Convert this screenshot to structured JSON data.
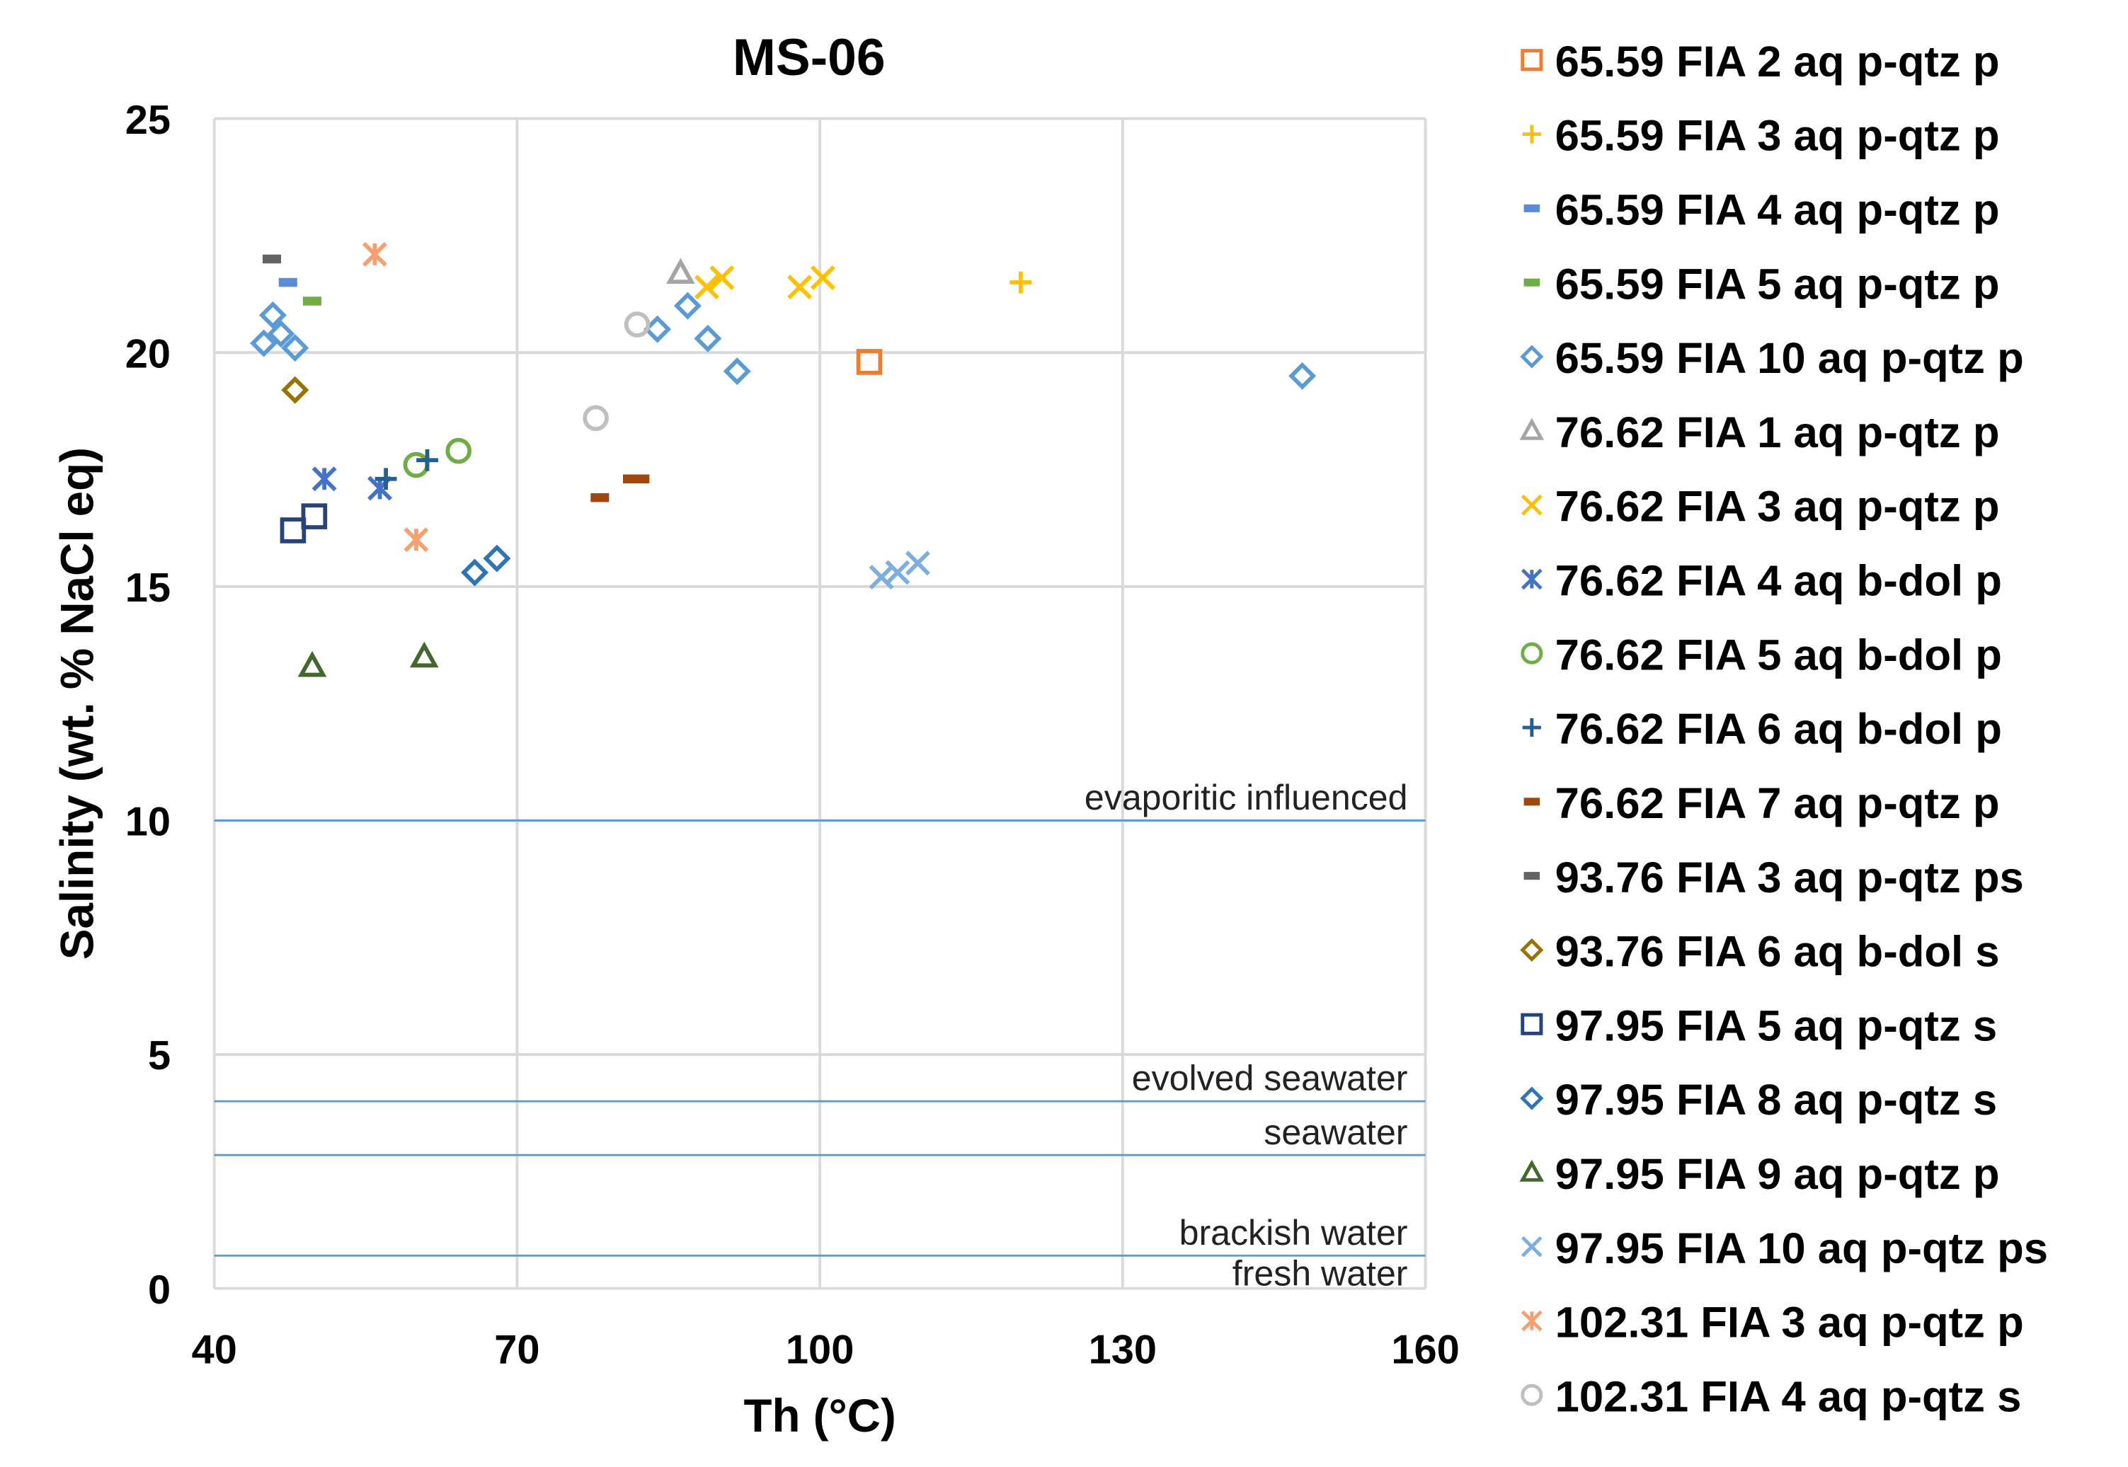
{
  "chart_data": {
    "type": "scatter",
    "title": "MS-06",
    "xlabel": "Th (°C)",
    "ylabel": "Salinity (wt. % NaCl eq)",
    "xlim": [
      40,
      160
    ],
    "ylim": [
      0,
      25
    ],
    "xticks": [
      40,
      70,
      100,
      130,
      160
    ],
    "yticks": [
      0,
      5,
      10,
      15,
      20,
      25
    ],
    "grid": true,
    "legend_position": "right",
    "reference_lines": [
      {
        "label": "evaporitic influenced",
        "y": 10
      },
      {
        "label": "evolved seawater",
        "y": 4.0
      },
      {
        "label": "seawater",
        "y": 2.85
      },
      {
        "label": "brackish water",
        "y": 0.7
      },
      {
        "label": "fresh water",
        "y": 0.7,
        "label_below": true
      }
    ],
    "ref_line_color": "#5B9BD5",
    "series": [
      {
        "name": "65.59 FIA 2 aq p-qtz p",
        "marker": "square",
        "color": "#ED7D31",
        "points": [
          [
            104.9,
            19.8
          ]
        ]
      },
      {
        "name": "65.59 FIA 3 aq p-qtz p",
        "marker": "plus",
        "color": "#FFC000",
        "points": [
          [
            119.9,
            21.5
          ]
        ]
      },
      {
        "name": "65.59 FIA 4 aq p-qtz p",
        "marker": "dash",
        "color": "#5B8BD9",
        "points": [
          [
            47.3,
            21.5
          ]
        ]
      },
      {
        "name": "65.59 FIA 5 aq p-qtz p",
        "marker": "dash",
        "color": "#70AD47",
        "points": [
          [
            49.7,
            21.1
          ]
        ]
      },
      {
        "name": "65.59 FIA 10 aq p-qtz p",
        "marker": "diamond",
        "color": "#5B9BD5",
        "points": [
          [
            44.9,
            20.2
          ],
          [
            45.8,
            20.8
          ],
          [
            46.6,
            20.4
          ],
          [
            48.0,
            20.1
          ],
          [
            83.9,
            20.5
          ],
          [
            86.9,
            21.0
          ],
          [
            88.9,
            20.3
          ],
          [
            91.8,
            19.6
          ],
          [
            147.8,
            19.5
          ]
        ]
      },
      {
        "name": "76.62 FIA 1 aq p-qtz p",
        "marker": "triangle",
        "color": "#A5A5A5",
        "points": [
          [
            86.2,
            21.7
          ]
        ]
      },
      {
        "name": "76.62 FIA 3 aq p-qtz p",
        "marker": "x",
        "color": "#FFC000",
        "points": [
          [
            88.8,
            21.4
          ],
          [
            90.3,
            21.6
          ],
          [
            98.0,
            21.4
          ],
          [
            100.3,
            21.6
          ]
        ]
      },
      {
        "name": "76.62 FIA 4 aq b-dol p",
        "marker": "asterisk",
        "color": "#4472C4",
        "points": [
          [
            50.9,
            17.3
          ],
          [
            56.4,
            17.1
          ]
        ]
      },
      {
        "name": "76.62 FIA 5 aq b-dol p",
        "marker": "circle",
        "color": "#70AD47",
        "points": [
          [
            60.0,
            17.6
          ],
          [
            64.2,
            17.9
          ]
        ]
      },
      {
        "name": "76.62 FIA 6 aq b-dol p",
        "marker": "plus",
        "color": "#255E91",
        "points": [
          [
            57.0,
            17.3
          ],
          [
            61.1,
            17.7
          ]
        ]
      },
      {
        "name": "76.62 FIA 7 aq p-qtz p",
        "marker": "dash",
        "color": "#9E480E",
        "points": [
          [
            78.2,
            16.9
          ],
          [
            81.4,
            17.3
          ],
          [
            82.2,
            17.3
          ]
        ]
      },
      {
        "name": "93.76 FIA 3 aq p-qtz ps",
        "marker": "dash",
        "color": "#636363",
        "points": [
          [
            45.7,
            22.0
          ]
        ]
      },
      {
        "name": "93.76 FIA 6 aq b-dol s",
        "marker": "diamond",
        "color": "#997300",
        "points": [
          [
            48.0,
            19.2
          ]
        ]
      },
      {
        "name": "97.95 FIA 5 aq p-qtz s",
        "marker": "square",
        "color": "#264478",
        "points": [
          [
            47.8,
            16.2
          ],
          [
            49.9,
            16.5
          ]
        ]
      },
      {
        "name": "97.95 FIA 8 aq p-qtz s",
        "marker": "diamond",
        "color": "#2E75B6",
        "points": [
          [
            65.8,
            15.3
          ],
          [
            68.0,
            15.6
          ]
        ]
      },
      {
        "name": "97.95 FIA 9 aq p-qtz p",
        "marker": "triangle",
        "color": "#43682B",
        "points": [
          [
            49.7,
            13.3
          ],
          [
            60.8,
            13.5
          ]
        ]
      },
      {
        "name": "97.95 FIA 10 aq p-qtz ps",
        "marker": "x",
        "color": "#7CAFDD",
        "points": [
          [
            106.1,
            15.2
          ],
          [
            107.7,
            15.3
          ],
          [
            109.7,
            15.5
          ]
        ]
      },
      {
        "name": "102.31 FIA 3 aq p-qtz p",
        "marker": "asterisk",
        "color": "#F4A070",
        "points": [
          [
            55.9,
            22.1
          ],
          [
            60.0,
            16.0
          ]
        ]
      },
      {
        "name": "102.31 FIA 4 aq p-qtz s",
        "marker": "circle",
        "color": "#BFBFBF",
        "points": [
          [
            77.8,
            18.6
          ],
          [
            81.9,
            20.6
          ]
        ]
      }
    ]
  }
}
